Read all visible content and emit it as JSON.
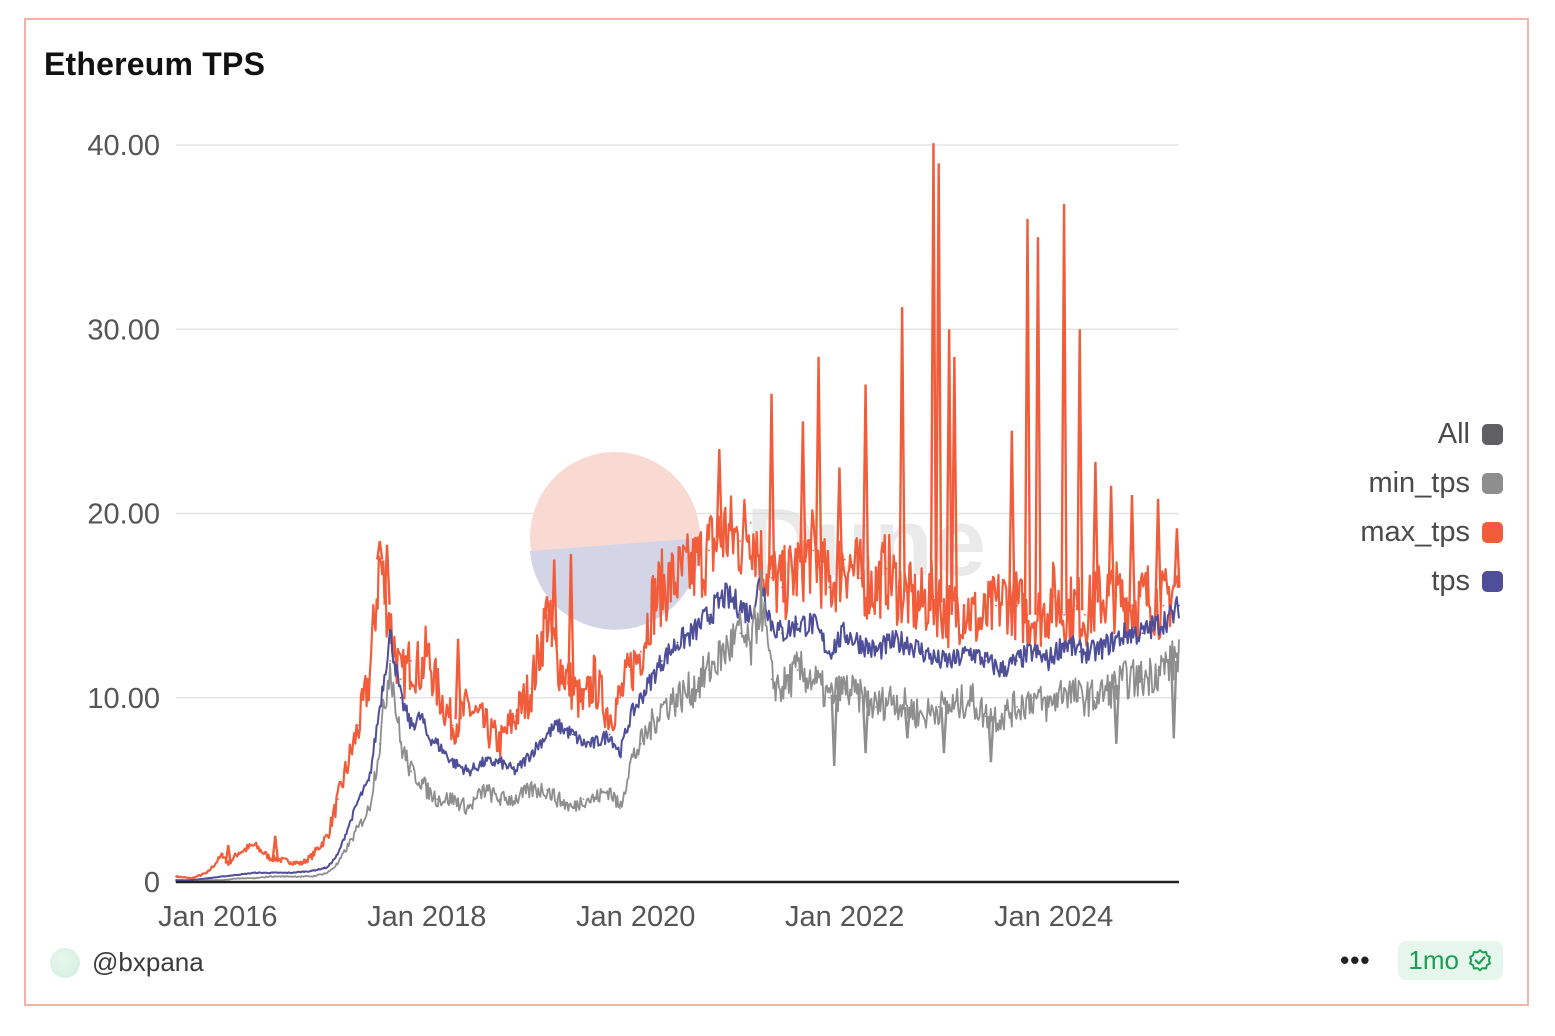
{
  "card": {
    "title": "Ethereum TPS",
    "author": "@bxpana",
    "more_label": "•••",
    "freshness_label": "1mo",
    "watermark_text": "Dune",
    "icons": {
      "avatar": "avatar-icon",
      "more": "more-icon",
      "verified": "check-badge-icon"
    }
  },
  "colors": {
    "all": "#5f5f64",
    "min_tps": "#8e8e8e",
    "max_tps": "#f15c3b",
    "tps": "#4f4f99",
    "grid": "#e5e5e5",
    "axis": "#222222"
  },
  "chart_data": {
    "type": "line",
    "title": "Ethereum TPS",
    "xlabel": "",
    "ylabel": "",
    "x_range": [
      2015.6,
      2025.2
    ],
    "ylim": [
      0,
      40
    ],
    "y_ticks": [
      0,
      10,
      20,
      30,
      40
    ],
    "y_tick_labels": [
      "0",
      "10.00",
      "20.00",
      "30.00",
      "40.00"
    ],
    "x_ticks": [
      2016,
      2018,
      2020,
      2022,
      2024
    ],
    "x_tick_labels": [
      "Jan 2016",
      "Jan 2018",
      "Jan 2020",
      "Jan 2022",
      "Jan 2024"
    ],
    "grid": true,
    "legend_position": "right",
    "legend": [
      "All",
      "min_tps",
      "max_tps",
      "tps"
    ],
    "series": [
      {
        "name": "max_tps",
        "x": [
          2015.6,
          2015.75,
          2015.9,
          2016.05,
          2016.1,
          2016.2,
          2016.35,
          2016.5,
          2016.7,
          2016.8,
          2016.9,
          2017.05,
          2017.15,
          2017.25,
          2017.35,
          2017.45,
          2017.55,
          2017.65,
          2017.75,
          2017.85,
          2017.95,
          2018.0,
          2018.1,
          2018.25,
          2018.4,
          2018.55,
          2018.7,
          2018.85,
          2019.0,
          2019.15,
          2019.25,
          2019.4,
          2019.5,
          2019.6,
          2019.75,
          2019.85,
          2019.95,
          2020.05,
          2020.15,
          2020.25,
          2020.4,
          2020.55,
          2020.7,
          2020.85,
          2021.0,
          2021.1,
          2021.2,
          2021.3,
          2021.4,
          2021.55,
          2021.7,
          2021.85,
          2022.0,
          2022.15,
          2022.3,
          2022.4,
          2022.5,
          2022.6,
          2022.7,
          2022.85,
          2023.0,
          2023.15,
          2023.3,
          2023.45,
          2023.55,
          2023.65,
          2023.75,
          2023.9,
          2024.0,
          2024.1,
          2024.2,
          2024.3,
          2024.45,
          2024.6,
          2024.75,
          2024.9,
          2025.05,
          2025.15,
          2025.2
        ],
        "values": [
          0.3,
          0.2,
          0.5,
          1.5,
          1.0,
          1.6,
          2.0,
          1.3,
          1.1,
          1.0,
          1.4,
          2.5,
          4.5,
          6.5,
          8.5,
          11.0,
          17.5,
          14.0,
          11.0,
          12.0,
          11.5,
          12.5,
          10.5,
          8.5,
          9.5,
          8.5,
          7.5,
          9.0,
          10.5,
          14.5,
          12.0,
          10.5,
          9.5,
          11.0,
          9.0,
          10.0,
          11.5,
          12.5,
          15.0,
          16.0,
          16.5,
          17.0,
          18.0,
          19.0,
          18.5,
          19.5,
          17.5,
          16.5,
          16.0,
          17.0,
          18.0,
          16.0,
          17.5,
          16.5,
          16.0,
          17.0,
          16.0,
          15.5,
          15.0,
          15.5,
          14.5,
          15.0,
          14.0,
          15.0,
          15.5,
          15.0,
          14.5,
          14.5,
          15.5,
          14.5,
          15.0,
          14.5,
          15.5,
          15.5,
          15.0,
          15.5,
          15.0,
          16.0,
          16.0
        ]
      },
      {
        "name": "tps",
        "x": [
          2015.6,
          2015.75,
          2015.9,
          2016.05,
          2016.2,
          2016.35,
          2016.5,
          2016.7,
          2016.9,
          2017.05,
          2017.15,
          2017.25,
          2017.35,
          2017.45,
          2017.55,
          2017.65,
          2017.75,
          2017.85,
          2017.95,
          2018.0,
          2018.1,
          2018.25,
          2018.4,
          2018.55,
          2018.7,
          2018.85,
          2019.0,
          2019.15,
          2019.25,
          2019.4,
          2019.5,
          2019.6,
          2019.75,
          2019.85,
          2019.95,
          2020.05,
          2020.15,
          2020.25,
          2020.4,
          2020.55,
          2020.7,
          2020.85,
          2021.0,
          2021.1,
          2021.2,
          2021.3,
          2021.4,
          2021.55,
          2021.7,
          2021.85,
          2022.0,
          2022.15,
          2022.3,
          2022.45,
          2022.6,
          2022.75,
          2022.9,
          2023.05,
          2023.2,
          2023.35,
          2023.5,
          2023.65,
          2023.8,
          2023.95,
          2024.1,
          2024.25,
          2024.4,
          2024.55,
          2024.7,
          2024.85,
          2025.0,
          2025.15,
          2025.2
        ],
        "values": [
          0.1,
          0.1,
          0.2,
          0.3,
          0.4,
          0.5,
          0.5,
          0.5,
          0.6,
          0.8,
          1.5,
          3.0,
          4.5,
          5.5,
          9.5,
          13.5,
          10.0,
          8.5,
          9.0,
          8.0,
          7.5,
          6.5,
          6.0,
          6.5,
          6.5,
          6.0,
          7.0,
          8.0,
          8.5,
          8.0,
          7.5,
          7.5,
          8.0,
          7.0,
          9.0,
          10.0,
          11.0,
          12.0,
          13.0,
          13.5,
          14.5,
          15.5,
          15.0,
          14.5,
          16.5,
          14.0,
          13.5,
          14.0,
          14.0,
          12.5,
          13.5,
          13.0,
          12.5,
          13.0,
          13.0,
          12.5,
          12.0,
          12.0,
          12.5,
          12.0,
          11.5,
          12.0,
          12.5,
          12.0,
          13.0,
          12.5,
          12.5,
          13.0,
          13.5,
          13.5,
          14.0,
          14.5,
          15.0
        ]
      },
      {
        "name": "min_tps",
        "x": [
          2015.6,
          2015.75,
          2015.9,
          2016.05,
          2016.2,
          2016.35,
          2016.5,
          2016.7,
          2016.9,
          2017.05,
          2017.15,
          2017.25,
          2017.35,
          2017.45,
          2017.55,
          2017.65,
          2017.75,
          2017.85,
          2017.95,
          2018.0,
          2018.1,
          2018.25,
          2018.4,
          2018.55,
          2018.7,
          2018.85,
          2019.0,
          2019.15,
          2019.25,
          2019.4,
          2019.5,
          2019.6,
          2019.75,
          2019.85,
          2019.95,
          2020.05,
          2020.15,
          2020.25,
          2020.4,
          2020.55,
          2020.7,
          2020.85,
          2021.0,
          2021.1,
          2021.2,
          2021.3,
          2021.4,
          2021.55,
          2021.7,
          2021.85,
          2022.0,
          2022.15,
          2022.3,
          2022.45,
          2022.6,
          2022.75,
          2022.9,
          2023.05,
          2023.2,
          2023.35,
          2023.5,
          2023.65,
          2023.8,
          2023.95,
          2024.1,
          2024.25,
          2024.4,
          2024.55,
          2024.7,
          2024.85,
          2025.0,
          2025.15,
          2025.2
        ],
        "values": [
          0.0,
          0.0,
          0.1,
          0.1,
          0.2,
          0.2,
          0.3,
          0.3,
          0.3,
          0.5,
          1.0,
          2.0,
          3.0,
          4.0,
          7.5,
          12.0,
          7.5,
          6.0,
          5.5,
          5.0,
          4.5,
          4.5,
          4.0,
          5.0,
          4.5,
          4.5,
          5.0,
          5.0,
          4.5,
          4.0,
          4.5,
          4.5,
          5.0,
          4.0,
          6.5,
          7.5,
          8.5,
          9.5,
          10.0,
          10.5,
          11.5,
          12.5,
          13.5,
          12.5,
          15.5,
          11.0,
          10.5,
          11.5,
          11.0,
          10.0,
          10.5,
          10.0,
          9.5,
          10.0,
          9.5,
          9.0,
          9.5,
          9.5,
          10.0,
          9.0,
          9.0,
          9.5,
          10.0,
          9.5,
          10.5,
          10.0,
          10.0,
          10.5,
          11.0,
          11.0,
          11.5,
          12.0,
          12.5
        ]
      }
    ],
    "spikes": {
      "max_tps": {
        "x": [
          2016.1,
          2016.55,
          2017.55,
          2017.62,
          2018.3,
          2019.15,
          2019.22,
          2019.38,
          2020.8,
          2021.3,
          2021.6,
          2021.75,
          2021.95,
          2022.2,
          2022.55,
          2022.85,
          2022.9,
          2023.0,
          2023.05,
          2023.6,
          2023.75,
          2023.85,
          2024.1,
          2024.25,
          2024.4,
          2024.55,
          2024.75,
          2025.0,
          2025.18
        ],
        "values": [
          2.0,
          2.5,
          18.5,
          18.3,
          13.2,
          15.5,
          17.5,
          17.8,
          23.5,
          26.5,
          25.0,
          28.5,
          22.5,
          27.0,
          31.2,
          40.1,
          39.0,
          30.0,
          28.5,
          24.5,
          36.0,
          35.0,
          36.8,
          30.0,
          22.8,
          21.5,
          21.0,
          20.8,
          19.2
        ]
      },
      "min_tps": {
        "x": [
          2021.9,
          2022.2,
          2022.6,
          2022.95,
          2023.4,
          2024.6,
          2025.15
        ],
        "values": [
          6.3,
          7.0,
          7.8,
          7.0,
          6.5,
          7.5,
          7.8
        ]
      }
    }
  }
}
